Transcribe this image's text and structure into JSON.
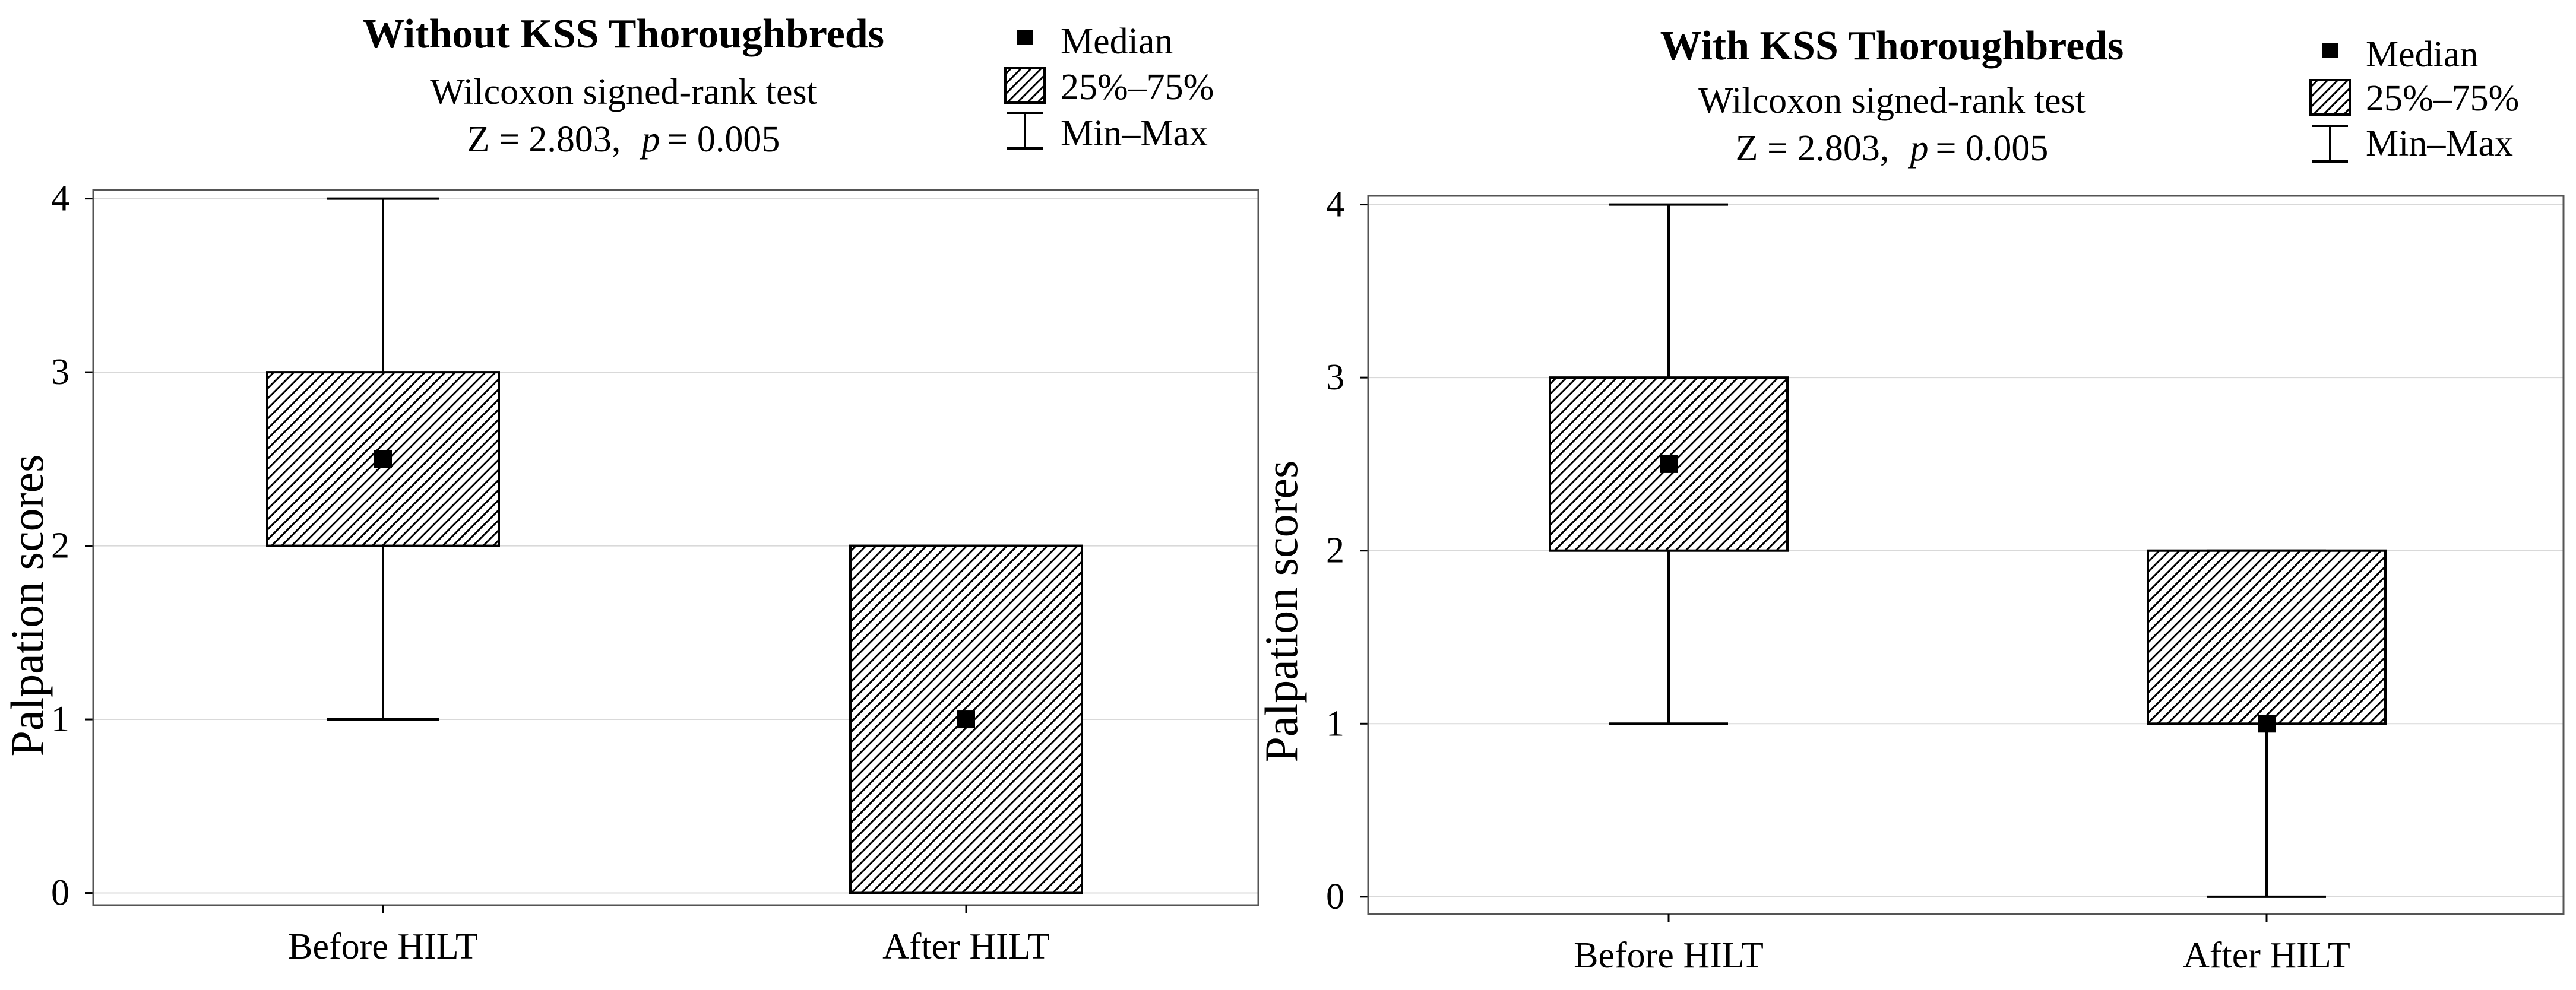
{
  "chart_data": [
    {
      "type": "box",
      "title": "Without KSS Thoroughbreds",
      "subtitle": "Wilcoxon signed-rank test",
      "stat_z": "Z = 2.803,",
      "stat_p_symbol": "p",
      "stat_p_value": "= 0.005",
      "ylabel": "Palpation scores",
      "xlabel": "",
      "ylim": [
        -0.07,
        4.05
      ],
      "yticks": [
        0,
        1,
        2,
        3,
        4
      ],
      "ytick_labels": [
        "0",
        "1",
        "2",
        "3",
        "4"
      ],
      "grid": true,
      "legend": {
        "placement": "top-right",
        "items": [
          {
            "label": "Median",
            "symbol": "square"
          },
          {
            "label": "25%–75%",
            "symbol": "hatched-box"
          },
          {
            "label": "Min–Max",
            "symbol": "whisker"
          }
        ]
      },
      "categories": [
        "Before HILT",
        "After HILT"
      ],
      "boxes": [
        {
          "min": 1,
          "q1": 2,
          "median": 2.5,
          "q3": 3,
          "max": 4
        },
        {
          "min": 0,
          "q1": 0,
          "median": 1,
          "q3": 2,
          "max": 2
        }
      ]
    },
    {
      "type": "box",
      "title": "With KSS Thoroughbreds",
      "subtitle": "Wilcoxon signed-rank test",
      "stat_z": "Z = 2.803,",
      "stat_p_symbol": "p",
      "stat_p_value": "= 0.005",
      "ylabel": "Palpation scores",
      "xlabel": "",
      "ylim": [
        -0.1,
        4.05
      ],
      "yticks": [
        0,
        1,
        2,
        3,
        4
      ],
      "ytick_labels": [
        "0",
        "1",
        "2",
        "3",
        "4"
      ],
      "grid": true,
      "legend": {
        "placement": "top-right",
        "items": [
          {
            "label": "Median",
            "symbol": "square"
          },
          {
            "label": "25%–75%",
            "symbol": "hatched-box"
          },
          {
            "label": "Min–Max",
            "symbol": "whisker"
          }
        ]
      },
      "categories": [
        "Before HILT",
        "After HILT"
      ],
      "boxes": [
        {
          "min": 1,
          "q1": 2,
          "median": 2.5,
          "q3": 3,
          "max": 4
        },
        {
          "min": 0,
          "q1": 1,
          "median": 1,
          "q3": 2,
          "max": 2
        }
      ]
    }
  ]
}
